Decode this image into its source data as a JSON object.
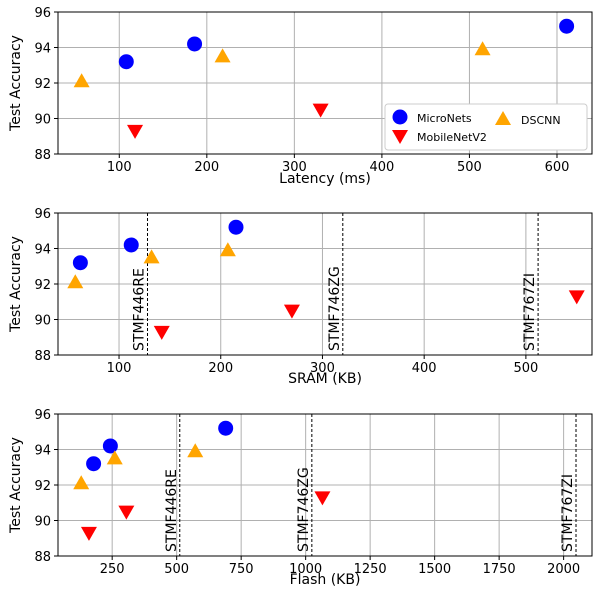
{
  "chart_data": [
    {
      "type": "scatter",
      "xlabel": "Latency (ms)",
      "ylabel": "Test Accuracy",
      "xlim": [
        30,
        640
      ],
      "ylim": [
        88,
        96
      ],
      "xticks": [
        100,
        200,
        300,
        400,
        500,
        600
      ],
      "yticks": [
        88,
        90,
        92,
        94,
        96
      ],
      "grid": true,
      "legend_position": "lower-right",
      "series": [
        {
          "name": "MicroNets",
          "marker": "circle",
          "color": "#0000ff",
          "points": [
            {
              "x": 108,
              "y": 93.2
            },
            {
              "x": 186,
              "y": 94.2
            },
            {
              "x": 611,
              "y": 95.2
            }
          ]
        },
        {
          "name": "MobileNetV2",
          "marker": "triangle-down",
          "color": "#ff0000",
          "points": [
            {
              "x": 118,
              "y": 89.3
            },
            {
              "x": 330,
              "y": 90.5
            }
          ]
        },
        {
          "name": "DSCNN",
          "marker": "triangle-up",
          "color": "#ffa500",
          "points": [
            {
              "x": 57,
              "y": 92.1
            },
            {
              "x": 218,
              "y": 93.5
            },
            {
              "x": 515,
              "y": 93.9
            }
          ]
        }
      ],
      "vlines": []
    },
    {
      "type": "scatter",
      "xlabel": "SRAM (KB)",
      "ylabel": "Test Accuracy",
      "xlim": [
        40,
        565
      ],
      "ylim": [
        88,
        96
      ],
      "xticks": [
        100,
        200,
        300,
        400,
        500
      ],
      "yticks": [
        88,
        90,
        92,
        94,
        96
      ],
      "grid": true,
      "series": [
        {
          "name": "MicroNets",
          "marker": "circle",
          "color": "#0000ff",
          "points": [
            {
              "x": 62,
              "y": 93.2
            },
            {
              "x": 112,
              "y": 94.2
            },
            {
              "x": 215,
              "y": 95.2
            }
          ]
        },
        {
          "name": "MobileNetV2",
          "marker": "triangle-down",
          "color": "#ff0000",
          "points": [
            {
              "x": 142,
              "y": 89.3
            },
            {
              "x": 270,
              "y": 90.5
            },
            {
              "x": 550,
              "y": 91.3
            }
          ]
        },
        {
          "name": "DSCNN",
          "marker": "triangle-up",
          "color": "#ffa500",
          "points": [
            {
              "x": 57,
              "y": 92.1
            },
            {
              "x": 132,
              "y": 93.5
            },
            {
              "x": 207,
              "y": 93.9
            }
          ]
        }
      ],
      "vlines": [
        {
          "x": 128,
          "label": "STMF446RE"
        },
        {
          "x": 320,
          "label": "STMF746ZG"
        },
        {
          "x": 512,
          "label": "STMF767ZI"
        }
      ]
    },
    {
      "type": "scatter",
      "xlabel": "Flash (KB)",
      "ylabel": "Test Accuracy",
      "xlim": [
        40,
        2110
      ],
      "ylim": [
        88,
        96
      ],
      "xticks": [
        250,
        500,
        750,
        1000,
        1250,
        1500,
        1750,
        2000
      ],
      "yticks": [
        88,
        90,
        92,
        94,
        96
      ],
      "grid": true,
      "series": [
        {
          "name": "MicroNets",
          "marker": "circle",
          "color": "#0000ff",
          "points": [
            {
              "x": 178,
              "y": 93.2
            },
            {
              "x": 243,
              "y": 94.2
            },
            {
              "x": 690,
              "y": 95.2
            }
          ]
        },
        {
          "name": "MobileNetV2",
          "marker": "triangle-down",
          "color": "#ff0000",
          "points": [
            {
              "x": 160,
              "y": 89.3
            },
            {
              "x": 305,
              "y": 90.5
            },
            {
              "x": 1065,
              "y": 91.3
            }
          ]
        },
        {
          "name": "DSCNN",
          "marker": "triangle-up",
          "color": "#ffa500",
          "points": [
            {
              "x": 130,
              "y": 92.1
            },
            {
              "x": 260,
              "y": 93.5
            },
            {
              "x": 572,
              "y": 93.9
            }
          ]
        }
      ],
      "vlines": [
        {
          "x": 512,
          "label": "STMF446RE"
        },
        {
          "x": 1024,
          "label": "STMF746ZG"
        },
        {
          "x": 2048,
          "label": "STMF767ZI"
        }
      ]
    }
  ]
}
